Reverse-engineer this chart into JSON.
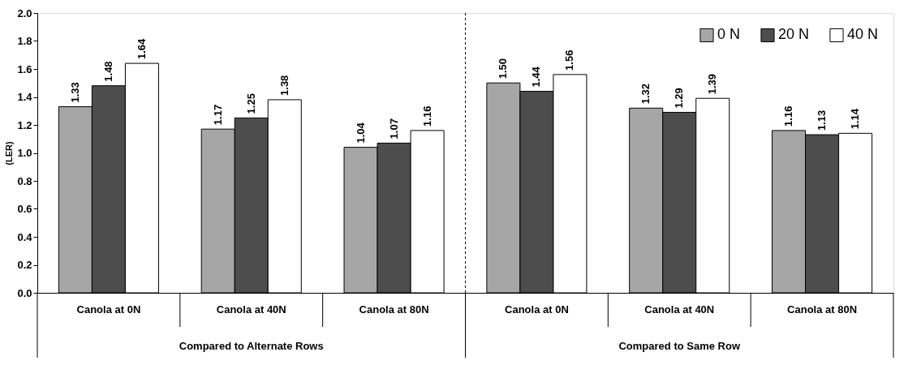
{
  "chart_data": {
    "type": "bar",
    "categories": [
      "Canola at 0N",
      "Canola at 40N",
      "Canola at 80N",
      "Canola at 0N",
      "Canola at 40N",
      "Canola at 80N"
    ],
    "series": [
      {
        "name": "0 N",
        "color": "#a6a6a6",
        "values": [
          1.33,
          1.17,
          1.04,
          1.5,
          1.32,
          1.16
        ],
        "value_labels": [
          "1.33",
          "1.17",
          "1.04",
          "1.50",
          "1.32",
          "1.16"
        ]
      },
      {
        "name": "20 N",
        "color": "#4d4d4d",
        "values": [
          1.48,
          1.25,
          1.07,
          1.44,
          1.29,
          1.13
        ],
        "value_labels": [
          "1.48",
          "1.25",
          "1.07",
          "1.44",
          "1.29",
          "1.13"
        ]
      },
      {
        "name": "40 N",
        "color": "#ffffff",
        "values": [
          1.64,
          1.38,
          1.16,
          1.56,
          1.39,
          1.14
        ],
        "value_labels": [
          "1.64",
          "1.38",
          "1.16",
          "1.56",
          "1.39",
          "1.14"
        ]
      }
    ],
    "ylabel": "(LER)",
    "ylim": [
      0,
      2.0
    ],
    "yticks": [
      {
        "value": 0,
        "label": "0.0"
      },
      0.2,
      0.4,
      0.6,
      0.8,
      {
        "value": 1,
        "label": "1.0"
      },
      1.2,
      1.4,
      1.6,
      1.8,
      {
        "value": 2,
        "label": "2.0"
      }
    ],
    "annotations": [
      "Compared to Alternate Rows",
      "Compared to Same Row"
    ],
    "data_labels": true,
    "grid": false,
    "legend": "top right"
  }
}
